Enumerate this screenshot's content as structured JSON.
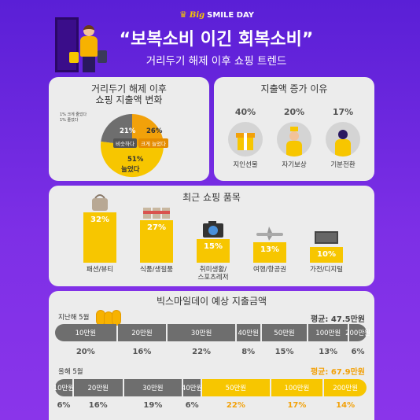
{
  "brand": {
    "big": "Big",
    "smile_day": "SMILE DAY"
  },
  "headline": "“보복소비 이긴 회복소비”",
  "subhead": "거리두기 해제 이후 쇼핑 트렌드",
  "colors": {
    "accent": "#f7c600",
    "grey": "#6e6e6e",
    "orange": "#f2a10a",
    "background": "#6a24dd"
  },
  "panel_change": {
    "title_line1": "거리두기 해제 이후",
    "title_line2": "쇼핑 지출액 변화",
    "note_much_increase": "1% 크게 줄었다",
    "note_decrease": "1% 줄었다"
  },
  "panel_reasons": {
    "title": "지출액 증가 이유",
    "items": [
      {
        "pct": "40%",
        "label": "지인선물",
        "icon": "gift-icon"
      },
      {
        "pct": "20%",
        "label": "자기보상",
        "icon": "self-reward-icon"
      },
      {
        "pct": "17%",
        "label": "기분전환",
        "icon": "mood-change-icon"
      }
    ]
  },
  "panel_items": {
    "title": "최근 쇼핑 품목",
    "items": [
      {
        "value": 32,
        "pct": "32%",
        "label": "패션/뷰티",
        "icon": "handbag-icon"
      },
      {
        "value": 27,
        "pct": "27%",
        "label": "식품/생필품",
        "icon": "groceries-icon"
      },
      {
        "value": 15,
        "pct": "15%",
        "label": "취미생활/\n스포츠레저",
        "icon": "camera-icon"
      },
      {
        "value": 13,
        "pct": "13%",
        "label": "여행/항공권",
        "icon": "airplane-icon"
      },
      {
        "value": 10,
        "pct": "10%",
        "label": "가전/디지털",
        "icon": "tv-icon"
      }
    ]
  },
  "panel_spend": {
    "title": "빅스마일데이 예상 지출금액",
    "last_year": {
      "label": "지난해 5월",
      "avg": "평균: 47.5만원",
      "segments": [
        {
          "label": "10만원",
          "pct": "20%",
          "value": 20
        },
        {
          "label": "20만원",
          "pct": "16%",
          "value": 16
        },
        {
          "label": "30만원",
          "pct": "22%",
          "value": 22
        },
        {
          "label": "40만원",
          "pct": "8%",
          "value": 8
        },
        {
          "label": "50만원",
          "pct": "15%",
          "value": 15
        },
        {
          "label": "100만원",
          "pct": "13%",
          "value": 13
        },
        {
          "label": "200만원",
          "pct": "6%",
          "value": 6
        }
      ]
    },
    "this_year": {
      "label": "올해 5월",
      "avg": "평균: 67.9만원",
      "segments": [
        {
          "label": "10만원",
          "pct": "6%",
          "value": 6
        },
        {
          "label": "20만원",
          "pct": "16%",
          "value": 16
        },
        {
          "label": "30만원",
          "pct": "19%",
          "value": 19
        },
        {
          "label": "40만원",
          "pct": "6%",
          "value": 6
        },
        {
          "label": "50만원",
          "pct": "22%",
          "value": 22
        },
        {
          "label": "100만원",
          "pct": "17%",
          "value": 17
        },
        {
          "label": "200만원",
          "pct": "14%",
          "value": 14
        }
      ]
    }
  },
  "chart_data": [
    {
      "type": "pie",
      "title": "거리두기 해제 이후 쇼핑 지출액 변화",
      "categories": [
        "크게 늘었다",
        "늘었다",
        "비슷하다",
        "크게 줄었다",
        "줄었다"
      ],
      "values": [
        26,
        51,
        21,
        1,
        1
      ],
      "labels": [
        "26%",
        "51%",
        "21%",
        "1%",
        "1%"
      ],
      "slice_labels": [
        "크게 늘었다",
        "늘었다",
        "비슷하다",
        "",
        ""
      ]
    },
    {
      "type": "bar",
      "title": "최근 쇼핑 품목",
      "categories": [
        "패션/뷰티",
        "식품/생필품",
        "취미생활/스포츠레저",
        "여행/항공권",
        "가전/디지털"
      ],
      "values": [
        32,
        27,
        15,
        13,
        10
      ]
    },
    {
      "type": "bar",
      "title": "빅스마일데이 예상 지출금액",
      "categories": [
        "10만원",
        "20만원",
        "30만원",
        "40만원",
        "50만원",
        "100만원",
        "200만원"
      ],
      "series": [
        {
          "name": "지난해 5월",
          "values": [
            20,
            16,
            22,
            8,
            15,
            13,
            6
          ]
        },
        {
          "name": "올해 5월",
          "values": [
            6,
            16,
            19,
            6,
            22,
            17,
            14
          ]
        }
      ]
    }
  ]
}
